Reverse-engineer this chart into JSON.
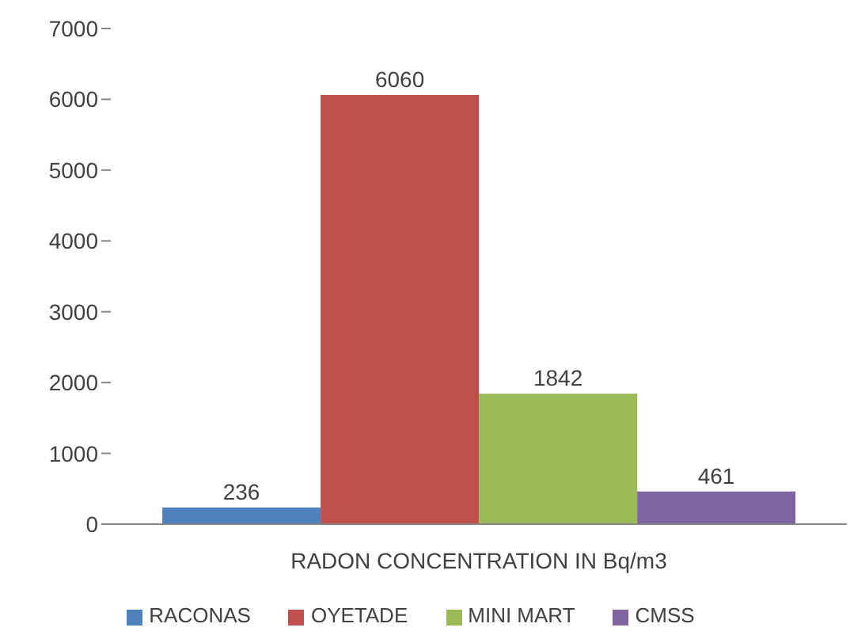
{
  "chart_data": {
    "type": "bar",
    "categories": [
      "RADON CONCENTRATION IN Bq/m3"
    ],
    "series": [
      {
        "name": "RACONAS",
        "color": "#4f81bd",
        "values": [
          236
        ]
      },
      {
        "name": "OYETADE",
        "color": "#c0504d",
        "values": [
          6060
        ]
      },
      {
        "name": "MINI MART",
        "color": "#9bbb59",
        "values": [
          1842
        ]
      },
      {
        "name": "CMSS",
        "color": "#8064a2",
        "values": [
          461
        ]
      }
    ],
    "ylim": [
      0,
      7000
    ],
    "yticks": [
      0,
      1000,
      2000,
      3000,
      4000,
      5000,
      6000,
      7000
    ],
    "grid": false,
    "legend": "bottom",
    "data_labels": true
  }
}
